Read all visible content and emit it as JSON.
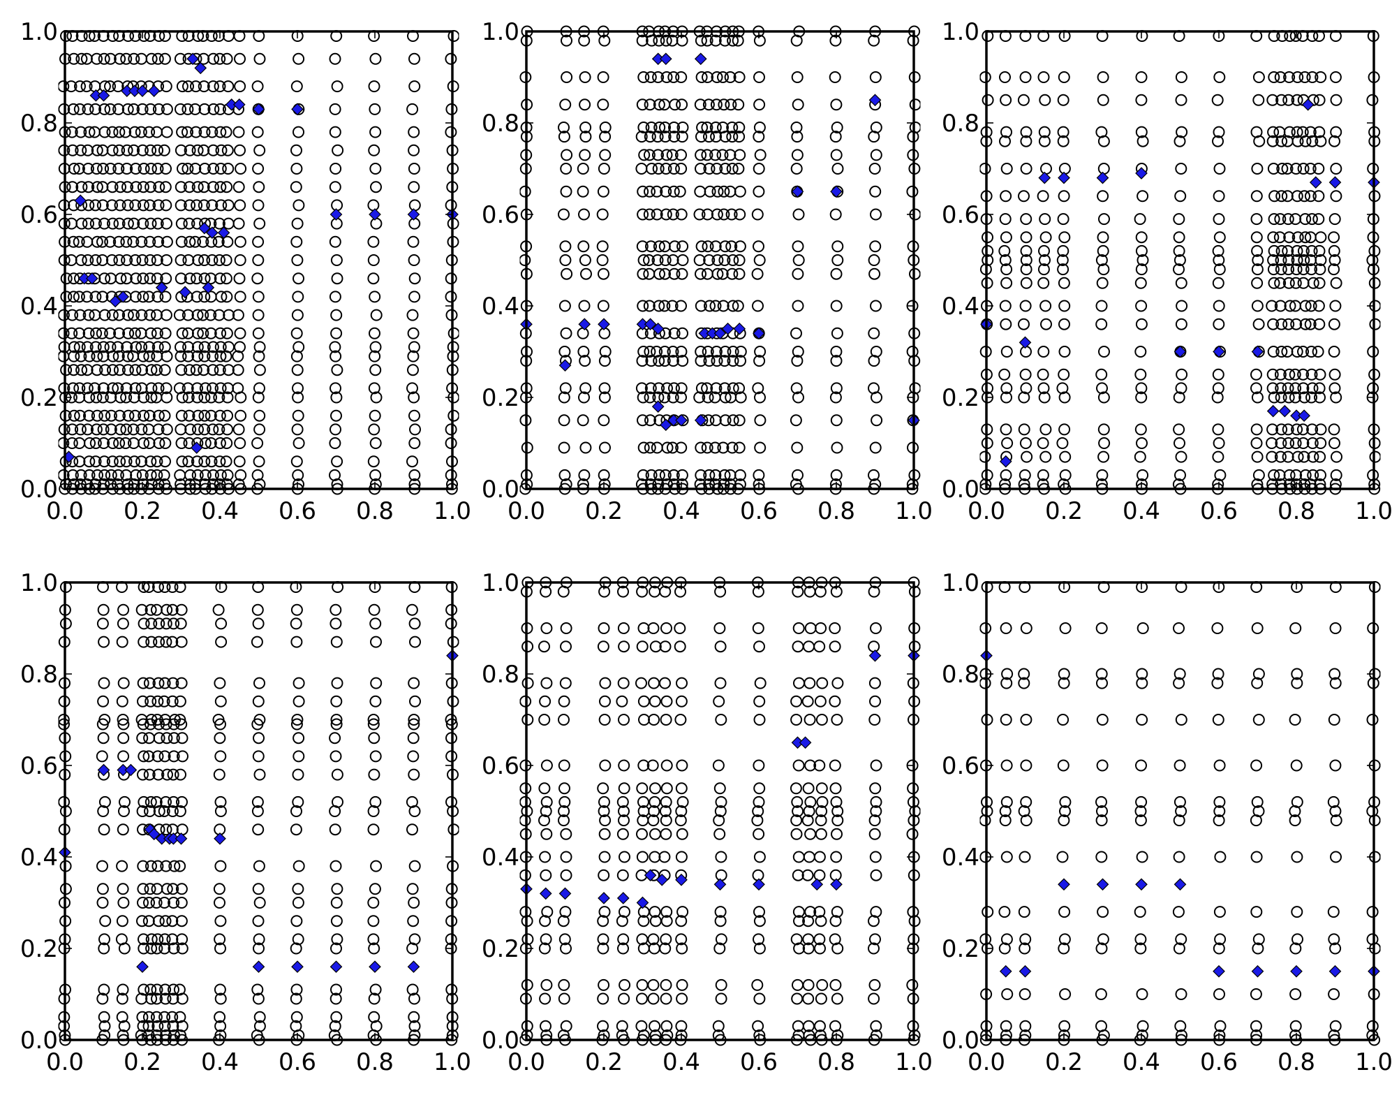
{
  "chart_data": [
    {
      "type": "scatter",
      "title": "",
      "xlabel": "",
      "ylabel": "",
      "xlim": [
        0.0,
        1.0
      ],
      "ylim": [
        0.0,
        1.0
      ],
      "grid": false,
      "x_ticks": [
        "0.0",
        "0.2",
        "0.4",
        "0.6",
        "0.8",
        "1.0"
      ],
      "y_ticks": [
        "0.0",
        "0.2",
        "0.4",
        "0.6",
        "0.8",
        "1.0"
      ],
      "circle_color": "#000000",
      "diamond_color": "#1a1ae6",
      "circle_columns": [
        0.0,
        0.02,
        0.04,
        0.06,
        0.08,
        0.1,
        0.12,
        0.14,
        0.16,
        0.18,
        0.2,
        0.22,
        0.24,
        0.26,
        0.3,
        0.32,
        0.34,
        0.36,
        0.38,
        0.4,
        0.42,
        0.45,
        0.5,
        0.6,
        0.7,
        0.8,
        0.9,
        1.0
      ],
      "circle_levels": [
        0.0,
        0.01,
        0.03,
        0.06,
        0.1,
        0.13,
        0.16,
        0.2,
        0.22,
        0.26,
        0.29,
        0.31,
        0.34,
        0.38,
        0.42,
        0.46,
        0.5,
        0.54,
        0.58,
        0.62,
        0.66,
        0.7,
        0.74,
        0.78,
        0.83,
        0.88,
        0.94,
        0.99
      ],
      "diamonds": [
        {
          "x": 0.01,
          "y": 0.07
        },
        {
          "x": 0.04,
          "y": 0.63
        },
        {
          "x": 0.05,
          "y": 0.46
        },
        {
          "x": 0.07,
          "y": 0.46
        },
        {
          "x": 0.08,
          "y": 0.86
        },
        {
          "x": 0.1,
          "y": 0.86
        },
        {
          "x": 0.13,
          "y": 0.41
        },
        {
          "x": 0.15,
          "y": 0.42
        },
        {
          "x": 0.16,
          "y": 0.87
        },
        {
          "x": 0.18,
          "y": 0.87
        },
        {
          "x": 0.2,
          "y": 0.87
        },
        {
          "x": 0.23,
          "y": 0.87
        },
        {
          "x": 0.25,
          "y": 0.44
        },
        {
          "x": 0.31,
          "y": 0.43
        },
        {
          "x": 0.33,
          "y": 0.94
        },
        {
          "x": 0.35,
          "y": 0.92
        },
        {
          "x": 0.34,
          "y": 0.09
        },
        {
          "x": 0.36,
          "y": 0.57
        },
        {
          "x": 0.38,
          "y": 0.56
        },
        {
          "x": 0.41,
          "y": 0.56
        },
        {
          "x": 0.37,
          "y": 0.44
        },
        {
          "x": 0.43,
          "y": 0.84
        },
        {
          "x": 0.45,
          "y": 0.84
        },
        {
          "x": 0.5,
          "y": 0.83
        },
        {
          "x": 0.6,
          "y": 0.83
        },
        {
          "x": 0.7,
          "y": 0.6
        },
        {
          "x": 0.8,
          "y": 0.6
        },
        {
          "x": 0.9,
          "y": 0.6
        },
        {
          "x": 1.0,
          "y": 0.6
        }
      ]
    },
    {
      "type": "scatter",
      "title": "",
      "xlabel": "",
      "ylabel": "",
      "xlim": [
        0.0,
        1.0
      ],
      "ylim": [
        0.0,
        1.0
      ],
      "grid": false,
      "x_ticks": [
        "0.0",
        "0.2",
        "0.4",
        "0.6",
        "0.8",
        "1.0"
      ],
      "y_ticks": [
        "0.0",
        "0.2",
        "0.4",
        "0.6",
        "0.8",
        "1.0"
      ],
      "circle_color": "#000000",
      "diamond_color": "#1a1ae6",
      "circle_columns": [
        0.0,
        0.1,
        0.15,
        0.2,
        0.3,
        0.32,
        0.34,
        0.36,
        0.38,
        0.4,
        0.45,
        0.47,
        0.49,
        0.51,
        0.53,
        0.55,
        0.6,
        0.7,
        0.8,
        0.9,
        1.0
      ],
      "circle_levels": [
        0.0,
        0.01,
        0.03,
        0.09,
        0.15,
        0.2,
        0.22,
        0.28,
        0.3,
        0.34,
        0.4,
        0.47,
        0.5,
        0.53,
        0.6,
        0.65,
        0.7,
        0.73,
        0.77,
        0.79,
        0.84,
        0.9,
        0.98,
        1.0
      ],
      "diamonds": [
        {
          "x": 0.0,
          "y": 0.36
        },
        {
          "x": 0.1,
          "y": 0.27
        },
        {
          "x": 0.15,
          "y": 0.36
        },
        {
          "x": 0.2,
          "y": 0.36
        },
        {
          "x": 0.3,
          "y": 0.36
        },
        {
          "x": 0.32,
          "y": 0.36
        },
        {
          "x": 0.34,
          "y": 0.35
        },
        {
          "x": 0.34,
          "y": 0.18
        },
        {
          "x": 0.36,
          "y": 0.14
        },
        {
          "x": 0.38,
          "y": 0.15
        },
        {
          "x": 0.4,
          "y": 0.15
        },
        {
          "x": 0.45,
          "y": 0.15
        },
        {
          "x": 0.34,
          "y": 0.94
        },
        {
          "x": 0.36,
          "y": 0.94
        },
        {
          "x": 0.45,
          "y": 0.94
        },
        {
          "x": 0.46,
          "y": 0.34
        },
        {
          "x": 0.48,
          "y": 0.34
        },
        {
          "x": 0.5,
          "y": 0.34
        },
        {
          "x": 0.52,
          "y": 0.35
        },
        {
          "x": 0.55,
          "y": 0.35
        },
        {
          "x": 0.6,
          "y": 0.34
        },
        {
          "x": 0.7,
          "y": 0.65
        },
        {
          "x": 0.8,
          "y": 0.65
        },
        {
          "x": 0.9,
          "y": 0.85
        },
        {
          "x": 1.0,
          "y": 0.15
        }
      ]
    },
    {
      "type": "scatter",
      "title": "",
      "xlabel": "",
      "ylabel": "",
      "xlim": [
        0.0,
        1.0
      ],
      "ylim": [
        0.0,
        1.0
      ],
      "grid": false,
      "x_ticks": [
        "0.0",
        "0.2",
        "0.4",
        "0.6",
        "0.8",
        "1.0"
      ],
      "y_ticks": [
        "0.0",
        "0.2",
        "0.4",
        "0.6",
        "0.8",
        "1.0"
      ],
      "circle_color": "#000000",
      "diamond_color": "#1a1ae6",
      "circle_columns": [
        0.0,
        0.05,
        0.1,
        0.15,
        0.2,
        0.3,
        0.4,
        0.5,
        0.6,
        0.7,
        0.74,
        0.76,
        0.78,
        0.8,
        0.82,
        0.84,
        0.86,
        0.9,
        1.0
      ],
      "circle_levels": [
        0.0,
        0.01,
        0.03,
        0.07,
        0.1,
        0.13,
        0.2,
        0.22,
        0.25,
        0.3,
        0.36,
        0.4,
        0.45,
        0.48,
        0.5,
        0.52,
        0.55,
        0.59,
        0.64,
        0.7,
        0.76,
        0.78,
        0.85,
        0.9,
        0.99
      ],
      "diamonds": [
        {
          "x": 0.0,
          "y": 0.36
        },
        {
          "x": 0.05,
          "y": 0.06
        },
        {
          "x": 0.1,
          "y": 0.32
        },
        {
          "x": 0.15,
          "y": 0.68
        },
        {
          "x": 0.2,
          "y": 0.68
        },
        {
          "x": 0.3,
          "y": 0.68
        },
        {
          "x": 0.4,
          "y": 0.69
        },
        {
          "x": 0.5,
          "y": 0.3
        },
        {
          "x": 0.6,
          "y": 0.3
        },
        {
          "x": 0.7,
          "y": 0.3
        },
        {
          "x": 0.74,
          "y": 0.17
        },
        {
          "x": 0.77,
          "y": 0.17
        },
        {
          "x": 0.8,
          "y": 0.16
        },
        {
          "x": 0.82,
          "y": 0.16
        },
        {
          "x": 0.83,
          "y": 0.84
        },
        {
          "x": 0.85,
          "y": 0.67
        },
        {
          "x": 0.9,
          "y": 0.67
        },
        {
          "x": 1.0,
          "y": 0.67
        }
      ]
    },
    {
      "type": "scatter",
      "title": "",
      "xlabel": "",
      "ylabel": "",
      "xlim": [
        0.0,
        1.0
      ],
      "ylim": [
        0.0,
        1.0
      ],
      "grid": false,
      "x_ticks": [
        "0.0",
        "0.2",
        "0.4",
        "0.6",
        "0.8",
        "1.0"
      ],
      "y_ticks": [
        "0.0",
        "0.2",
        "0.4",
        "0.6",
        "0.8",
        "1.0"
      ],
      "circle_color": "#000000",
      "diamond_color": "#1a1ae6",
      "circle_columns": [
        0.0,
        0.1,
        0.15,
        0.2,
        0.22,
        0.24,
        0.26,
        0.28,
        0.3,
        0.4,
        0.5,
        0.6,
        0.7,
        0.8,
        0.9,
        1.0
      ],
      "circle_levels": [
        0.0,
        0.01,
        0.03,
        0.05,
        0.09,
        0.11,
        0.2,
        0.22,
        0.26,
        0.3,
        0.33,
        0.38,
        0.46,
        0.5,
        0.52,
        0.58,
        0.62,
        0.66,
        0.69,
        0.7,
        0.74,
        0.78,
        0.87,
        0.91,
        0.94,
        0.99
      ],
      "diamonds": [
        {
          "x": 0.0,
          "y": 0.41
        },
        {
          "x": 0.1,
          "y": 0.59
        },
        {
          "x": 0.15,
          "y": 0.59
        },
        {
          "x": 0.17,
          "y": 0.59
        },
        {
          "x": 0.2,
          "y": 0.16
        },
        {
          "x": 0.22,
          "y": 0.46
        },
        {
          "x": 0.23,
          "y": 0.45
        },
        {
          "x": 0.25,
          "y": 0.44
        },
        {
          "x": 0.27,
          "y": 0.44
        },
        {
          "x": 0.28,
          "y": 0.44
        },
        {
          "x": 0.3,
          "y": 0.44
        },
        {
          "x": 0.4,
          "y": 0.44
        },
        {
          "x": 0.5,
          "y": 0.16
        },
        {
          "x": 0.6,
          "y": 0.16
        },
        {
          "x": 0.7,
          "y": 0.16
        },
        {
          "x": 0.8,
          "y": 0.16
        },
        {
          "x": 0.9,
          "y": 0.16
        },
        {
          "x": 1.0,
          "y": 0.84
        }
      ]
    },
    {
      "type": "scatter",
      "title": "",
      "xlabel": "",
      "ylabel": "",
      "xlim": [
        0.0,
        1.0
      ],
      "ylim": [
        0.0,
        1.0
      ],
      "grid": false,
      "x_ticks": [
        "0.0",
        "0.2",
        "0.4",
        "0.6",
        "0.8",
        "1.0"
      ],
      "y_ticks": [
        "0.0",
        "0.2",
        "0.4",
        "0.6",
        "0.8",
        "1.0"
      ],
      "circle_color": "#000000",
      "diamond_color": "#1a1ae6",
      "circle_columns": [
        0.0,
        0.05,
        0.1,
        0.2,
        0.25,
        0.3,
        0.33,
        0.36,
        0.4,
        0.5,
        0.6,
        0.7,
        0.73,
        0.76,
        0.8,
        0.9,
        1.0
      ],
      "circle_levels": [
        0.0,
        0.01,
        0.03,
        0.09,
        0.12,
        0.2,
        0.22,
        0.26,
        0.28,
        0.36,
        0.4,
        0.45,
        0.48,
        0.5,
        0.52,
        0.55,
        0.6,
        0.7,
        0.74,
        0.78,
        0.86,
        0.9,
        0.98,
        1.0
      ],
      "diamonds": [
        {
          "x": 0.0,
          "y": 0.33
        },
        {
          "x": 0.05,
          "y": 0.32
        },
        {
          "x": 0.1,
          "y": 0.32
        },
        {
          "x": 0.2,
          "y": 0.31
        },
        {
          "x": 0.25,
          "y": 0.31
        },
        {
          "x": 0.3,
          "y": 0.3
        },
        {
          "x": 0.32,
          "y": 0.36
        },
        {
          "x": 0.35,
          "y": 0.35
        },
        {
          "x": 0.4,
          "y": 0.35
        },
        {
          "x": 0.5,
          "y": 0.34
        },
        {
          "x": 0.6,
          "y": 0.34
        },
        {
          "x": 0.7,
          "y": 0.65
        },
        {
          "x": 0.72,
          "y": 0.65
        },
        {
          "x": 0.75,
          "y": 0.34
        },
        {
          "x": 0.8,
          "y": 0.34
        },
        {
          "x": 0.9,
          "y": 0.84
        },
        {
          "x": 1.0,
          "y": 0.84
        }
      ]
    },
    {
      "type": "scatter",
      "title": "",
      "xlabel": "",
      "ylabel": "",
      "xlim": [
        0.0,
        1.0
      ],
      "ylim": [
        0.0,
        1.0
      ],
      "grid": false,
      "x_ticks": [
        "0.0",
        "0.2",
        "0.4",
        "0.6",
        "0.8",
        "1.0"
      ],
      "y_ticks": [
        "0.0",
        "0.2",
        "0.4",
        "0.6",
        "0.8",
        "1.0"
      ],
      "circle_color": "#000000",
      "diamond_color": "#1a1ae6",
      "circle_columns": [
        0.0,
        0.05,
        0.1,
        0.2,
        0.3,
        0.4,
        0.5,
        0.6,
        0.7,
        0.8,
        0.9,
        1.0
      ],
      "circle_levels": [
        0.0,
        0.01,
        0.03,
        0.1,
        0.2,
        0.22,
        0.28,
        0.4,
        0.48,
        0.5,
        0.52,
        0.6,
        0.7,
        0.78,
        0.8,
        0.9,
        0.99
      ],
      "diamonds": [
        {
          "x": 0.0,
          "y": 0.84
        },
        {
          "x": 0.05,
          "y": 0.15
        },
        {
          "x": 0.1,
          "y": 0.15
        },
        {
          "x": 0.2,
          "y": 0.34
        },
        {
          "x": 0.3,
          "y": 0.34
        },
        {
          "x": 0.4,
          "y": 0.34
        },
        {
          "x": 0.5,
          "y": 0.34
        },
        {
          "x": 0.6,
          "y": 0.15
        },
        {
          "x": 0.7,
          "y": 0.15
        },
        {
          "x": 0.8,
          "y": 0.15
        },
        {
          "x": 0.9,
          "y": 0.15
        },
        {
          "x": 1.0,
          "y": 0.15
        }
      ]
    }
  ]
}
